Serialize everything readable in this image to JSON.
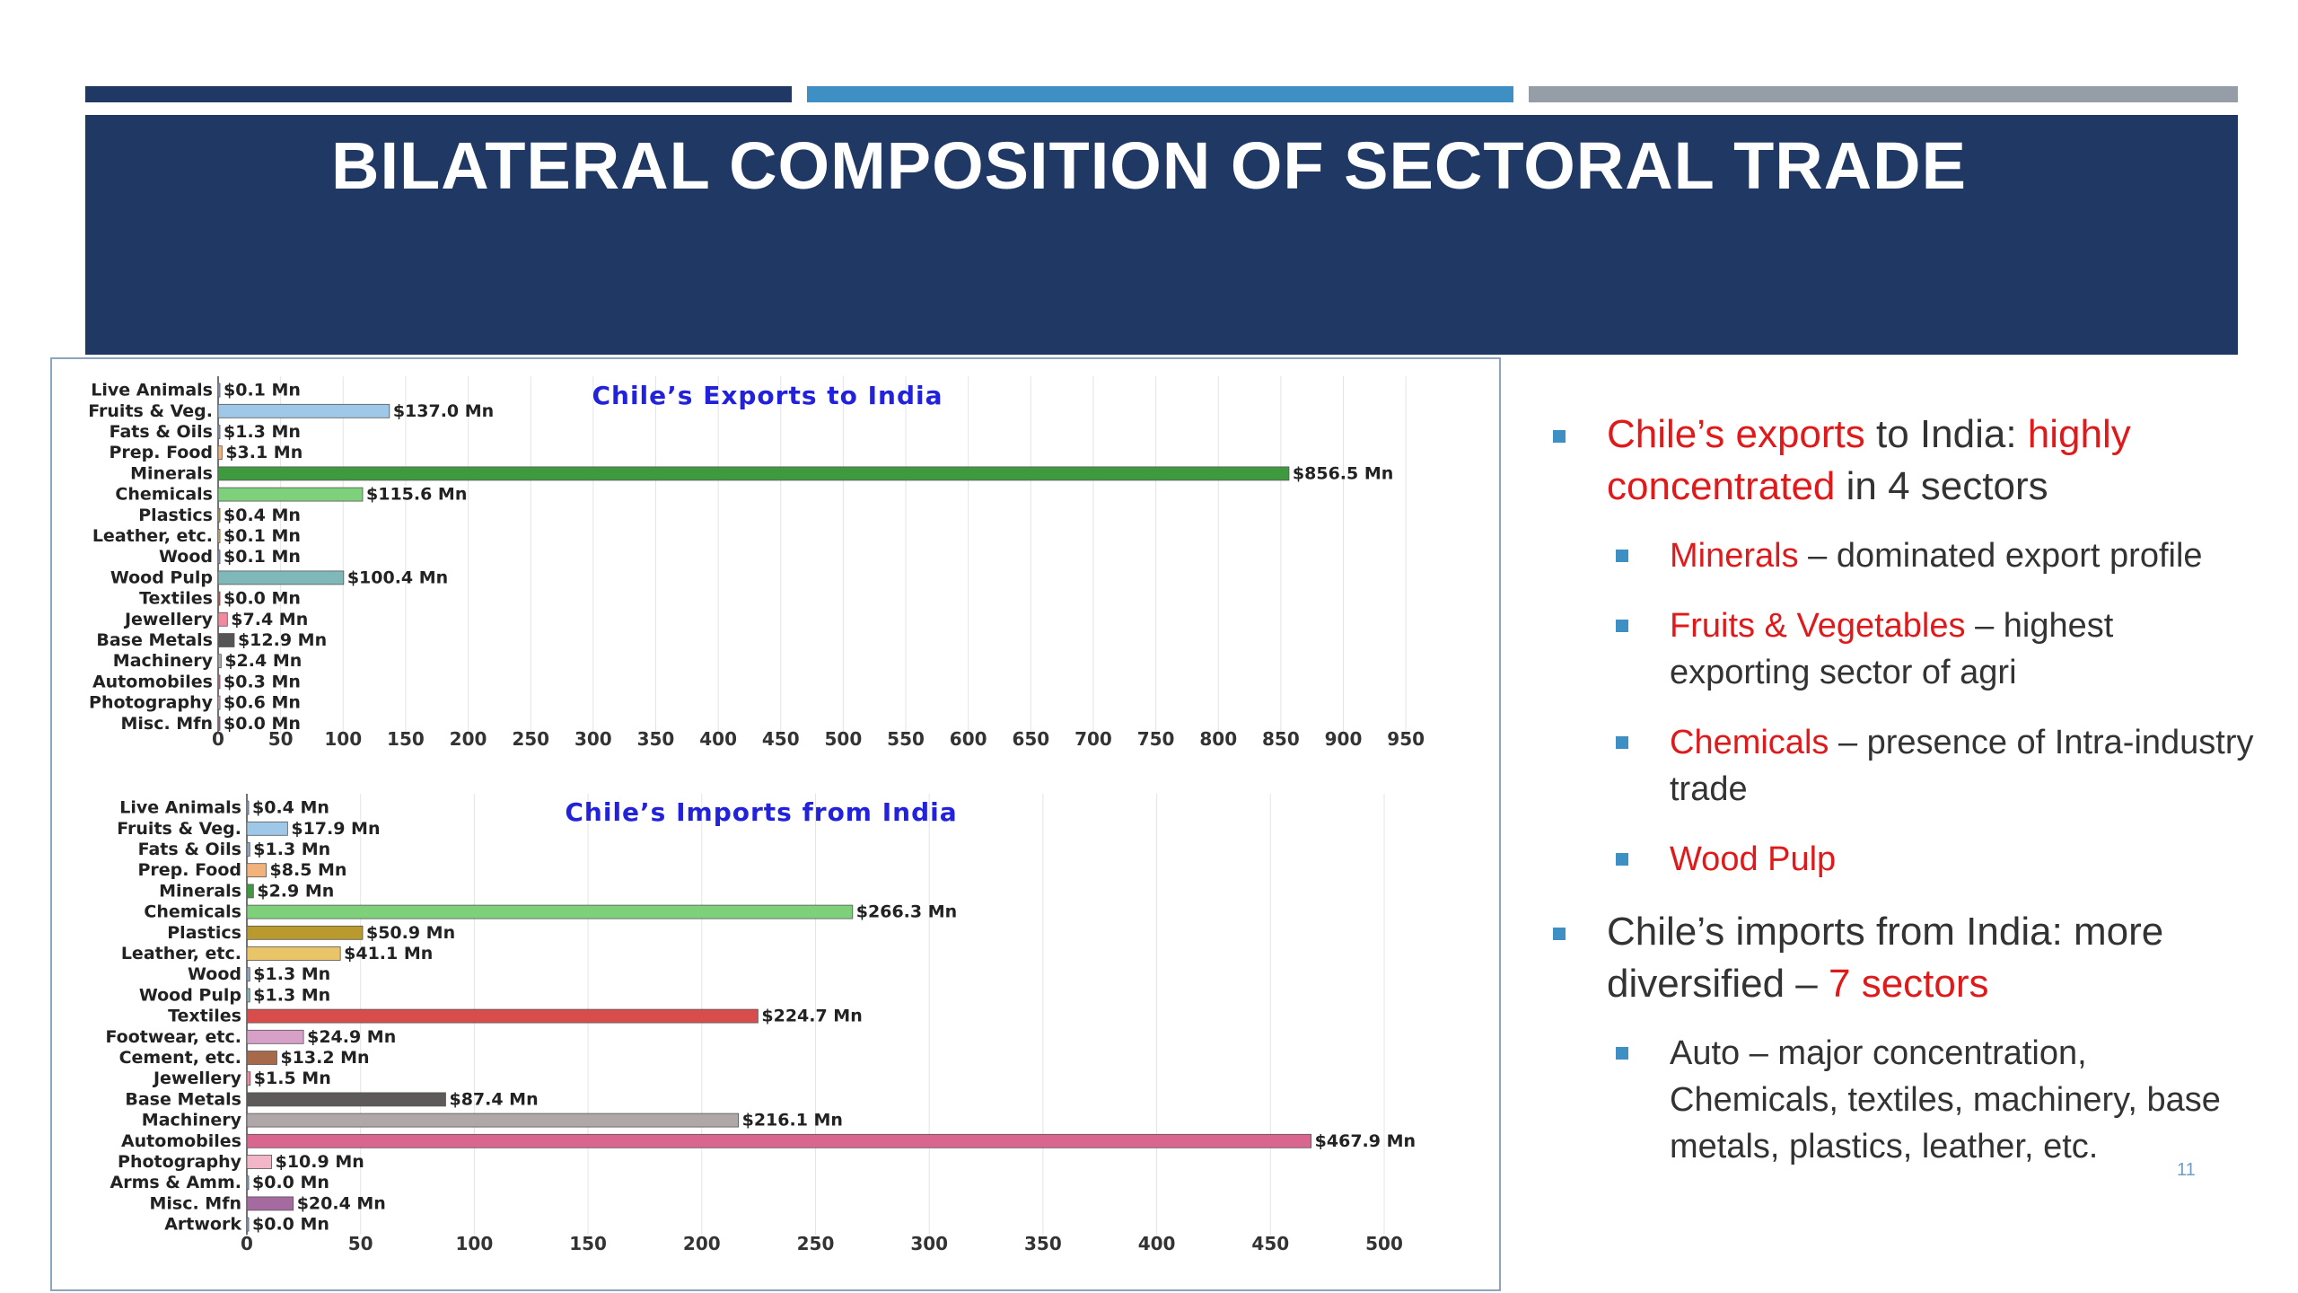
{
  "header": {
    "title": "BILATERAL COMPOSITION OF SECTORAL TRADE"
  },
  "colors": {
    "navy": "#1f3864",
    "accent_blue": "#3e8fc3",
    "grey": "#959ea7",
    "highlight_red": "#e01a1a"
  },
  "chart_data": [
    {
      "type": "bar",
      "orientation": "horizontal",
      "title": "Chile’s Exports to India",
      "categories": [
        "Live Animals",
        "Fruits & Veg.",
        "Fats & Oils",
        "Prep. Food",
        "Minerals",
        "Chemicals",
        "Plastics",
        "Leather, etc.",
        "Wood",
        "Wood Pulp",
        "Textiles",
        "Jewellery",
        "Base Metals",
        "Machinery",
        "Automobiles",
        "Photography",
        "Misc. Mfn"
      ],
      "values": [
        0.1,
        137.0,
        1.3,
        3.1,
        856.5,
        115.6,
        0.4,
        0.1,
        0.1,
        100.4,
        0.0,
        7.4,
        12.9,
        2.4,
        0.3,
        0.6,
        0.0
      ],
      "labels": [
        "$0.1 Mn",
        "$137.0 Mn",
        "$1.3 Mn",
        "$3.1 Mn",
        "$856.5 Mn",
        "$115.6 Mn",
        "$0.4 Mn",
        "$0.1 Mn",
        "$0.1 Mn",
        "$100.4 Mn",
        "$0.0 Mn",
        "$7.4 Mn",
        "$12.9 Mn",
        "$2.4 Mn",
        "$0.3 Mn",
        "$0.6 Mn",
        "$0.0 Mn"
      ],
      "colors": [
        "#8aa7cf",
        "#9ec7e8",
        "#8aa7cf",
        "#f2b37a",
        "#3f9a3f",
        "#7ed07a",
        "#c8a848",
        "#e9c468",
        "#8aa7cf",
        "#7fb8b8",
        "#d94c4c",
        "#f08a9c",
        "#555555",
        "#b0a8a8",
        "#d9668f",
        "#f3b6c8",
        "#a56a9f"
      ],
      "xticks": [
        0,
        50,
        100,
        150,
        200,
        250,
        300,
        350,
        400,
        450,
        500,
        550,
        600,
        650,
        700,
        750,
        800,
        850,
        900,
        950
      ],
      "xlim": [
        0,
        970
      ],
      "grid": true
    },
    {
      "type": "bar",
      "orientation": "horizontal",
      "title": "Chile’s Imports from India",
      "categories": [
        "Live Animals",
        "Fruits & Veg.",
        "Fats & Oils",
        "Prep. Food",
        "Minerals",
        "Chemicals",
        "Plastics",
        "Leather, etc.",
        "Wood",
        "Wood Pulp",
        "Textiles",
        "Footwear, etc.",
        "Cement, etc.",
        "Jewellery",
        "Base Metals",
        "Machinery",
        "Automobiles",
        "Photography",
        "Arms & Amm.",
        "Misc. Mfn",
        "Artwork"
      ],
      "values": [
        0.4,
        17.9,
        1.3,
        8.5,
        2.9,
        266.3,
        50.9,
        41.1,
        1.3,
        1.3,
        224.7,
        24.9,
        13.2,
        1.5,
        87.4,
        216.1,
        467.9,
        10.9,
        0.0,
        20.4,
        0.0
      ],
      "labels": [
        "$0.4 Mn",
        "$17.9 Mn",
        "$1.3 Mn",
        "$8.5 Mn",
        "$2.9 Mn",
        "$266.3 Mn",
        "$50.9 Mn",
        "$41.1 Mn",
        "$1.3 Mn",
        "$1.3 Mn",
        "$224.7 Mn",
        "$24.9 Mn",
        "$13.2 Mn",
        "$1.5 Mn",
        "$87.4 Mn",
        "$216.1 Mn",
        "$467.9 Mn",
        "$10.9 Mn",
        "$0.0 Mn",
        "$20.4 Mn",
        "$0.0 Mn"
      ],
      "colors": [
        "#8aa7cf",
        "#9ec7e8",
        "#8aa7cf",
        "#f2b37a",
        "#3f9a3f",
        "#7ed07a",
        "#b89a2e",
        "#e9c468",
        "#8aa7cf",
        "#7fb8b8",
        "#d94c4c",
        "#d6a0c8",
        "#a66a4a",
        "#f08a9c",
        "#5e5a5a",
        "#b0a8a8",
        "#d9668f",
        "#f3b6c8",
        "#8aa7cf",
        "#a56a9f",
        "#8aa7cf"
      ],
      "xticks": [
        0,
        50,
        100,
        150,
        200,
        250,
        300,
        350,
        400,
        450,
        500
      ],
      "xlim": [
        0,
        540
      ],
      "grid": true
    }
  ],
  "bullets": {
    "b1": {
      "p1": "Chile’s exports",
      "p2": " to India: ",
      "p3": "highly concentrated",
      "p4": " in 4 sectors"
    },
    "b1a": {
      "red": "Minerals",
      "rest": " – dominated export profile"
    },
    "b1b": {
      "red": "Fruits & Vegetables",
      "rest": " – highest exporting sector of agri"
    },
    "b1c": {
      "red": "Chemicals",
      "rest": " – presence of Intra-industry trade"
    },
    "b1d": {
      "red": "Wood Pulp"
    },
    "b2": {
      "p1": "Chile’s imports from India: more diversified – ",
      "p2": "7 sectors"
    },
    "b2a": {
      "text": "Auto – major concentration, Chemicals, textiles, machinery, base metals, plastics, leather, etc."
    }
  },
  "page_number": "11"
}
